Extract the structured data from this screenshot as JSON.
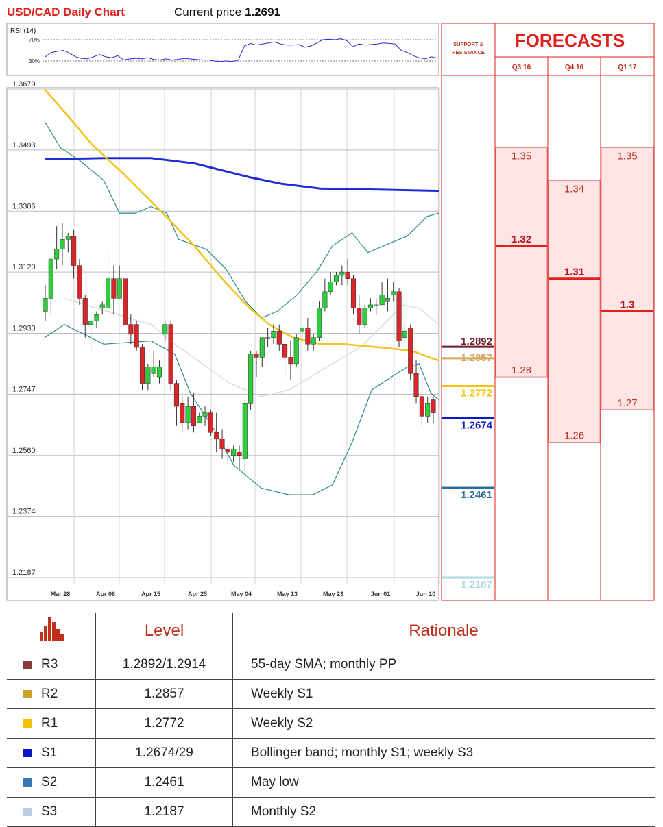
{
  "header": {
    "title": "USD/CAD Daily Chart",
    "price_label": "Current price",
    "price_value": "1.2691"
  },
  "chart_data": {
    "type": "candlestick",
    "rsi": {
      "label": "RSI (14)",
      "levels": [
        "70%",
        "30%"
      ],
      "values": [
        0.38,
        0.46,
        0.48,
        0.5,
        0.45,
        0.38,
        0.35,
        0.34,
        0.38,
        0.42,
        0.38,
        0.36,
        0.4,
        0.32,
        0.34,
        0.35,
        0.34,
        0.36,
        0.33,
        0.32,
        0.34,
        0.32,
        0.33,
        0.35,
        0.34,
        0.33,
        0.32,
        0.32,
        0.3,
        0.29,
        0.3,
        0.29,
        0.32,
        0.58,
        0.63,
        0.6,
        0.62,
        0.64,
        0.66,
        0.62,
        0.6,
        0.6,
        0.61,
        0.56,
        0.58,
        0.64,
        0.7,
        0.71,
        0.7,
        0.72,
        0.68,
        0.57,
        0.62,
        0.6,
        0.61,
        0.62,
        0.64,
        0.63,
        0.62,
        0.5,
        0.46,
        0.4,
        0.36,
        0.34,
        0.38,
        0.35
      ]
    },
    "y_ticks": [
      "1.3679",
      "1.3493",
      "1.3306",
      "1.3120",
      "1.2933",
      "1.2747",
      "1.2560",
      "1.2374",
      "1.2187"
    ],
    "x_ticks": [
      "Mar 28",
      "Apr 06",
      "Apr 15",
      "Apr 25",
      "May 04",
      "May 13",
      "May 23",
      "Jun 01",
      "Jun 10"
    ],
    "ylim": [
      1.216,
      1.3679
    ],
    "candles": [
      [
        1.3,
        1.304,
        1.297,
        1.308
      ],
      [
        1.304,
        1.316,
        1.299,
        1.316
      ],
      [
        1.316,
        1.319,
        1.313,
        1.326
      ],
      [
        1.319,
        1.322,
        1.314,
        1.327
      ],
      [
        1.322,
        1.323,
        1.318,
        1.324
      ],
      [
        1.323,
        1.314,
        1.31,
        1.325
      ],
      [
        1.314,
        1.304,
        1.302,
        1.316
      ],
      [
        1.304,
        1.296,
        1.292,
        1.305
      ],
      [
        1.296,
        1.297,
        1.288,
        1.299
      ],
      [
        1.297,
        1.299,
        1.295,
        1.3
      ],
      [
        1.301,
        1.302,
        1.299,
        1.303
      ],
      [
        1.301,
        1.31,
        1.3,
        1.318
      ],
      [
        1.31,
        1.304,
        1.299,
        1.314
      ],
      [
        1.304,
        1.31,
        1.304,
        1.314
      ],
      [
        1.31,
        1.296,
        1.293,
        1.312
      ],
      [
        1.296,
        1.293,
        1.29,
        1.299
      ],
      [
        1.296,
        1.289,
        1.288,
        1.297
      ],
      [
        1.289,
        1.278,
        1.276,
        1.29
      ],
      [
        1.278,
        1.283,
        1.276,
        1.284
      ],
      [
        1.281,
        1.283,
        1.28,
        1.288
      ],
      [
        1.28,
        1.283,
        1.278,
        1.285
      ],
      [
        1.293,
        1.296,
        1.291,
        1.297
      ],
      [
        1.296,
        1.278,
        1.276,
        1.297
      ],
      [
        1.278,
        1.271,
        1.265,
        1.279
      ],
      [
        1.272,
        1.266,
        1.263,
        1.274
      ],
      [
        1.266,
        1.271,
        1.264,
        1.274
      ],
      [
        1.271,
        1.265,
        1.263,
        1.275
      ],
      [
        1.266,
        1.268,
        1.266,
        1.269
      ],
      [
        1.268,
        1.269,
        1.265,
        1.271
      ],
      [
        1.269,
        1.263,
        1.262,
        1.27
      ],
      [
        1.263,
        1.261,
        1.257,
        1.269
      ],
      [
        1.261,
        1.258,
        1.255,
        1.264
      ],
      [
        1.258,
        1.257,
        1.253,
        1.259
      ],
      [
        1.256,
        1.258,
        1.254,
        1.259
      ],
      [
        1.257,
        1.256,
        1.252,
        1.259
      ],
      [
        1.255,
        1.272,
        1.251,
        1.273
      ],
      [
        1.272,
        1.287,
        1.27,
        1.288
      ],
      [
        1.287,
        1.286,
        1.28,
        1.288
      ],
      [
        1.286,
        1.292,
        1.283,
        1.292
      ],
      [
        1.292,
        1.292,
        1.289,
        1.295
      ],
      [
        1.292,
        1.294,
        1.29,
        1.296
      ],
      [
        1.294,
        1.29,
        1.288,
        1.296
      ],
      [
        1.29,
        1.286,
        1.28,
        1.291
      ],
      [
        1.286,
        1.284,
        1.279,
        1.291
      ],
      [
        1.284,
        1.292,
        1.283,
        1.293
      ],
      [
        1.294,
        1.295,
        1.287,
        1.296
      ],
      [
        1.295,
        1.29,
        1.288,
        1.298
      ],
      [
        1.29,
        1.292,
        1.288,
        1.293
      ],
      [
        1.292,
        1.301,
        1.291,
        1.303
      ],
      [
        1.301,
        1.306,
        1.3,
        1.31
      ],
      [
        1.306,
        1.309,
        1.305,
        1.312
      ],
      [
        1.309,
        1.311,
        1.308,
        1.312
      ],
      [
        1.311,
        1.312,
        1.308,
        1.314
      ],
      [
        1.312,
        1.31,
        1.308,
        1.316
      ],
      [
        1.31,
        1.301,
        1.299,
        1.311
      ],
      [
        1.301,
        1.296,
        1.293,
        1.305
      ],
      [
        1.296,
        1.301,
        1.295,
        1.302
      ],
      [
        1.301,
        1.302,
        1.3,
        1.304
      ],
      [
        1.302,
        1.302,
        1.299,
        1.304
      ],
      [
        1.302,
        1.305,
        1.302,
        1.309
      ],
      [
        1.303,
        1.304,
        1.3,
        1.31
      ],
      [
        1.305,
        1.306,
        1.303,
        1.309
      ],
      [
        1.306,
        1.291,
        1.289,
        1.307
      ],
      [
        1.292,
        1.294,
        1.291,
        1.296
      ],
      [
        1.295,
        1.281,
        1.279,
        1.296
      ],
      [
        1.281,
        1.274,
        1.272,
        1.285
      ],
      [
        1.274,
        1.268,
        1.265,
        1.275
      ],
      [
        1.268,
        1.272,
        1.266,
        1.274
      ],
      [
        1.273,
        1.269,
        1.266,
        1.274
      ]
    ],
    "sma200": [
      [
        1.3465,
        0
      ],
      [
        1.3468,
        0.15
      ],
      [
        1.3468,
        0.27
      ],
      [
        1.3452,
        0.38
      ],
      [
        1.341,
        0.52
      ],
      [
        1.339,
        0.6
      ],
      [
        1.3375,
        0.7
      ],
      [
        1.3372,
        0.85
      ],
      [
        1.3368,
        1
      ]
    ],
    "sma55": [
      [
        1.3679,
        0
      ],
      [
        1.361,
        0.05
      ],
      [
        1.351,
        0.12
      ],
      [
        1.342,
        0.2
      ],
      [
        1.33,
        0.3
      ],
      [
        1.32,
        0.38
      ],
      [
        1.31,
        0.45
      ],
      [
        1.301,
        0.52
      ],
      [
        1.296,
        0.57
      ],
      [
        1.292,
        0.63
      ],
      [
        1.29,
        0.7
      ],
      [
        1.29,
        0.76
      ],
      [
        1.289,
        0.85
      ],
      [
        1.288,
        0.93
      ],
      [
        1.285,
        1
      ]
    ],
    "bb_upper": [
      [
        1.358,
        0
      ],
      [
        1.35,
        0.04
      ],
      [
        1.346,
        0.09
      ],
      [
        1.34,
        0.15
      ],
      [
        1.33,
        0.19
      ],
      [
        1.33,
        0.23
      ],
      [
        1.332,
        0.27
      ],
      [
        1.33,
        0.31
      ],
      [
        1.322,
        0.34
      ],
      [
        1.319,
        0.41
      ],
      [
        1.313,
        0.46
      ],
      [
        1.303,
        0.51
      ],
      [
        1.298,
        0.55
      ],
      [
        1.3,
        0.59
      ],
      [
        1.305,
        0.64
      ],
      [
        1.312,
        0.69
      ],
      [
        1.32,
        0.73
      ],
      [
        1.324,
        0.78
      ],
      [
        1.318,
        0.82
      ],
      [
        1.321,
        0.88
      ],
      [
        1.323,
        0.92
      ],
      [
        1.329,
        0.97
      ],
      [
        1.33,
        1
      ]
    ],
    "bb_lower": [
      [
        1.292,
        0
      ],
      [
        1.296,
        0.05
      ],
      [
        1.29,
        0.15
      ],
      [
        1.291,
        0.27
      ],
      [
        1.287,
        0.33
      ],
      [
        1.275,
        0.37
      ],
      [
        1.264,
        0.43
      ],
      [
        1.253,
        0.48
      ],
      [
        1.246,
        0.55
      ],
      [
        1.244,
        0.62
      ],
      [
        1.244,
        0.68
      ],
      [
        1.247,
        0.73
      ],
      [
        1.26,
        0.78
      ],
      [
        1.276,
        0.83
      ],
      [
        1.28,
        0.88
      ],
      [
        1.283,
        0.92
      ],
      [
        1.284,
        0.95
      ],
      [
        1.275,
        0.98
      ],
      [
        1.273,
        1
      ]
    ],
    "bb_mid": [
      [
        1.304,
        0.05
      ],
      [
        1.296,
        0.27
      ],
      [
        1.29,
        0.33
      ],
      [
        1.278,
        0.47
      ],
      [
        1.274,
        0.55
      ],
      [
        1.276,
        0.62
      ],
      [
        1.284,
        0.73
      ],
      [
        1.289,
        0.8
      ],
      [
        1.296,
        0.86
      ],
      [
        1.302,
        0.91
      ],
      [
        1.301,
        0.95
      ],
      [
        1.296,
        1
      ]
    ],
    "levels": [
      {
        "value": "1.2892",
        "color": "#6b1d2a",
        "y": 1.2892
      },
      {
        "value": "1.2857",
        "color": "#d3a85c",
        "y": 1.2857
      },
      {
        "value": "1.2772",
        "color": "#f4c20d",
        "y": 1.2772
      },
      {
        "value": "1.2674",
        "color": "#0a18c8",
        "y": 1.2674
      },
      {
        "value": "1.2461",
        "color": "#2e6f9e",
        "y": 1.2461
      },
      {
        "value": "1.2187",
        "color": "#a8d8dc",
        "y": 1.2187
      }
    ],
    "support_title": [
      "SUPPORT &",
      "RESISTANCE"
    ],
    "forecast_title": "FORECASTS",
    "forecasts": [
      {
        "period": "Q3 16",
        "high": "1.35",
        "mid": "1.32",
        "low": "1.28",
        "hi_y": 1.35,
        "mid_y": 1.32,
        "lo_y": 1.28
      },
      {
        "period": "Q4 16",
        "high": "1.34",
        "mid": "1.31",
        "low": "1.26",
        "hi_y": 1.34,
        "mid_y": 1.31,
        "lo_y": 1.26
      },
      {
        "period": "Q1 17",
        "high": "1.35",
        "mid": "1.3",
        "low": "1.27",
        "hi_y": 1.35,
        "mid_y": 1.3,
        "lo_y": 1.27
      }
    ]
  },
  "table": {
    "headers": {
      "level": "Level",
      "rationale": "Rationale"
    },
    "rows": [
      {
        "code": "R3",
        "level": "1.2892/1.2914",
        "rationale": "55-day SMA; monthly PP",
        "color": "#8b3a3a"
      },
      {
        "code": "R2",
        "level": "1.2857",
        "rationale": "Weekly S1",
        "color": "#c9a227"
      },
      {
        "code": "R1",
        "level": "1.2772",
        "rationale": "Weekly S2",
        "color": "#f4c20d"
      },
      {
        "code": "S1",
        "level": "1.2674/29",
        "rationale": "Bollinger band; monthly S1; weekly S3",
        "color": "#0a18c8"
      },
      {
        "code": "S2",
        "level": "1.2461",
        "rationale": "May low",
        "color": "#3a78b5"
      },
      {
        "code": "S3",
        "level": "1.2187",
        "rationale": "Monthly S2",
        "color": "#b8cde6"
      }
    ]
  }
}
